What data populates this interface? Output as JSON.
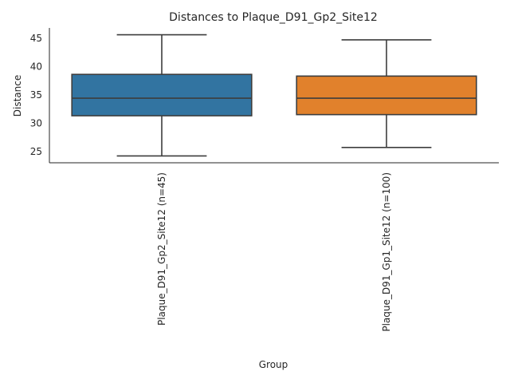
{
  "chart_data": {
    "type": "box",
    "title": "Distances to Plaque_D91_Gp2_Site12",
    "xlabel": "Group",
    "ylabel": "Distance",
    "ylim": [
      23.0,
      46.8
    ],
    "yticks": [
      25,
      30,
      35,
      40,
      45
    ],
    "grid": false,
    "categories": [
      "Plaque_D91_Gp2_Site12 (n=45)",
      "Plaque_D91_Gp1_Site12 (n=100)"
    ],
    "boxes": [
      {
        "category": "Plaque_D91_Gp2_Site12 (n=45)",
        "min": 24.2,
        "q1": 31.3,
        "median": 34.4,
        "q3": 38.6,
        "max": 45.6,
        "color": "#3274a1"
      },
      {
        "category": "Plaque_D91_Gp1_Site12 (n=100)",
        "min": 25.7,
        "q1": 31.5,
        "median": 34.4,
        "q3": 38.3,
        "max": 44.7,
        "color": "#e1812c"
      }
    ],
    "line_color": "#3d3d3d",
    "axis_color": "#262626"
  }
}
